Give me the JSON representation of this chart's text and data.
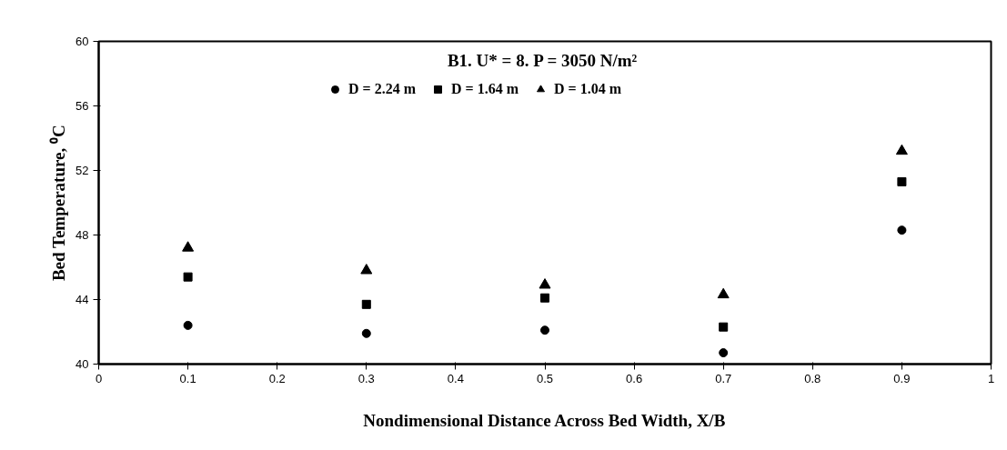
{
  "chart_data": {
    "type": "scatter",
    "title": "B1. U* = 8.  P = 3050 N/m²",
    "xlabel": "Nondimensional Distance Across Bed Width, X/B",
    "ylabel": "Bed Temperature, ⁰C",
    "x": [
      0.1,
      0.3,
      0.5,
      0.7,
      0.9
    ],
    "series": [
      {
        "name": "D = 2.24 m",
        "color": "#000000",
        "marker": "circle",
        "values": [
          42.4,
          41.9,
          42.1,
          40.7,
          48.3
        ]
      },
      {
        "name": "D = 1.64 m",
        "color": "#000000",
        "marker": "square",
        "values": [
          45.4,
          43.7,
          44.1,
          42.3,
          51.3
        ]
      },
      {
        "name": "D = 1.04 m",
        "color": "#000000",
        "marker": "triangle",
        "values": [
          47.2,
          45.8,
          44.9,
          44.3,
          53.2
        ]
      }
    ],
    "xlim": [
      0,
      1
    ],
    "xticks": [
      0,
      0.1,
      0.2,
      0.3,
      0.4,
      0.5,
      0.6,
      0.7,
      0.8,
      0.9,
      1
    ],
    "ylim": [
      40,
      60
    ],
    "yticks": [
      40,
      44,
      48,
      52,
      56,
      60
    ],
    "grid": false,
    "legend": "top"
  }
}
